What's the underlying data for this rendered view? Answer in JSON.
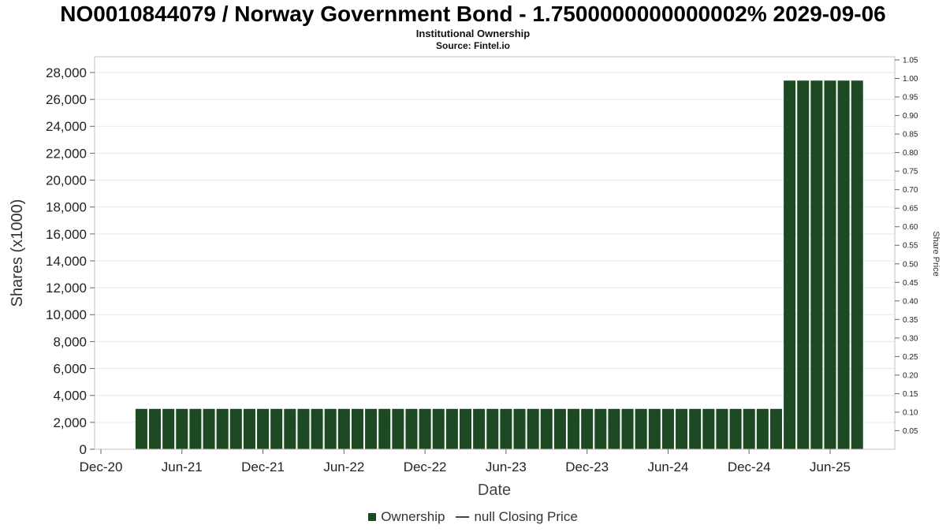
{
  "header": {
    "title": "NO0010844079 / Norway Government Bond - 1.7500000000000002% 2029-09-06",
    "subtitle": "Institutional Ownership",
    "source": "Source: Fintel.io"
  },
  "chart_data": {
    "type": "bar",
    "title": "NO0010844079 / Norway Government Bond - 1.7500000000000002% 2029-09-06",
    "subtitle": "Institutional Ownership",
    "source": "Source: Fintel.io",
    "xlabel": "Date",
    "ylabel_left": "Shares (x1000)",
    "ylabel_right": "Share Price",
    "grid": "horizontal",
    "legend_position": "bottom",
    "left_axis": {
      "min": 0,
      "max": 28000,
      "tick_step": 2000
    },
    "right_axis": {
      "min": 0,
      "max": 1.05,
      "tick_step": 0.05
    },
    "left_tick_labels": [
      "0",
      "2,000",
      "4,000",
      "6,000",
      "8,000",
      "10,000",
      "12,000",
      "14,000",
      "16,000",
      "18,000",
      "20,000",
      "22,000",
      "24,000",
      "26,000",
      "28,000"
    ],
    "right_tick_labels": [
      "0.05",
      "0.10",
      "0.15",
      "0.20",
      "0.25",
      "0.30",
      "0.35",
      "0.40",
      "0.45",
      "0.50",
      "0.55",
      "0.60",
      "0.65",
      "0.70",
      "0.75",
      "0.80",
      "0.85",
      "0.90",
      "0.95",
      "1.00",
      "1.05"
    ],
    "x_tick_labels": [
      "Dec-20",
      "Jun-21",
      "Dec-21",
      "Jun-22",
      "Dec-22",
      "Jun-23",
      "Dec-23",
      "Jun-24",
      "Dec-24",
      "Jun-25"
    ],
    "x_tick_month_index": [
      0,
      6,
      12,
      18,
      24,
      30,
      36,
      42,
      48,
      54
    ],
    "series": [
      {
        "name": "Ownership",
        "axis": "left",
        "color": "#1d4a23",
        "x": [
          "Mar-21",
          "Apr-21",
          "May-21",
          "Jun-21",
          "Jul-21",
          "Aug-21",
          "Sep-21",
          "Oct-21",
          "Nov-21",
          "Dec-21",
          "Jan-22",
          "Feb-22",
          "Mar-22",
          "Apr-22",
          "May-22",
          "Jun-22",
          "Jul-22",
          "Aug-22",
          "Sep-22",
          "Oct-22",
          "Nov-22",
          "Dec-22",
          "Jan-23",
          "Feb-23",
          "Mar-23",
          "Apr-23",
          "May-23",
          "Jun-23",
          "Jul-23",
          "Aug-23",
          "Sep-23",
          "Oct-23",
          "Nov-23",
          "Dec-23",
          "Jan-24",
          "Feb-24",
          "Mar-24",
          "Apr-24",
          "May-24",
          "Jun-24",
          "Jul-24",
          "Aug-24",
          "Sep-24",
          "Oct-24",
          "Nov-24",
          "Dec-24",
          "Jan-25",
          "Feb-25",
          "Mar-25",
          "Apr-25",
          "May-25",
          "Jun-25",
          "Jul-25",
          "Aug-25"
        ],
        "values": [
          3000,
          3000,
          3000,
          3000,
          3000,
          3000,
          3000,
          3000,
          3000,
          3000,
          3000,
          3000,
          3000,
          3000,
          3000,
          3000,
          3000,
          3000,
          3000,
          3000,
          3000,
          3000,
          3000,
          3000,
          3000,
          3000,
          3000,
          3000,
          3000,
          3000,
          3000,
          3000,
          3000,
          3000,
          3000,
          3000,
          3000,
          3000,
          3000,
          3000,
          3000,
          3000,
          3000,
          3000,
          3000,
          3000,
          3000,
          3000,
          27400,
          27400,
          27400,
          27400,
          27400,
          27400
        ]
      },
      {
        "name": "null Closing Price",
        "axis": "right",
        "color": "#444444",
        "x": [],
        "values": []
      }
    ],
    "legend": [
      {
        "label": "Ownership",
        "swatch": "square",
        "color": "#1d4a23"
      },
      {
        "label": "null Closing Price",
        "swatch": "line",
        "color": "#444444"
      }
    ]
  }
}
